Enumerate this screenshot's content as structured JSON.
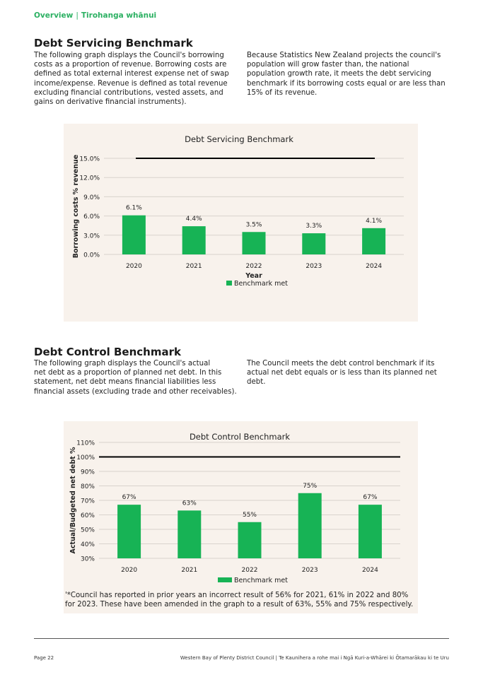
{
  "breadcrumb": {
    "section": "Overview",
    "sub": "Tirohanga whānui",
    "separator": "|"
  },
  "section1": {
    "title": "Debt Servicing Benchmark",
    "left_lines": [
      "The following graph displays the Council's borrowing",
      "costs as a proportion of revenue. Borrowing costs are",
      "defined as total external interest expense net of swap",
      "income/expense. Revenue is defined as total revenue",
      "excluding financial contributions, vested assets, and",
      "gains on derivative financial instruments)."
    ],
    "right_lines": [
      "Because Statistics New Zealand projects the council's",
      "population will grow faster than, the national",
      "population growth rate, it meets the debt servicing",
      "benchmark if its borrowing costs equal or are less than",
      "15% of its revenue."
    ]
  },
  "section2": {
    "title": "Debt Control Benchmark",
    "left_lines": [
      "The following graph displays the Council's actual",
      "net debt as a proportion of planned net debt. In this",
      "statement, net debt means financial liabilities less",
      "financial assets (excluding trade and other receivables)."
    ],
    "right_lines": [
      "The Council meets the debt control benchmark if its",
      "actual net debt equals or is less than its planned net",
      "debt."
    ]
  },
  "chart_data": [
    {
      "type": "bar",
      "title": "Debt Servicing Benchmark",
      "xlabel": "Year",
      "ylabel": "Borrowing costs % revenue",
      "categories": [
        "2020",
        "2021",
        "2022",
        "2023",
        "2024"
      ],
      "series": [
        {
          "name": "Benchmark met",
          "values": [
            6.1,
            4.4,
            3.5,
            3.3,
            4.1
          ]
        }
      ],
      "data_labels": [
        "6.1%",
        "4.4%",
        "3.5%",
        "3.3%",
        "4.1%"
      ],
      "benchmark": 15.0,
      "ylim": [
        0,
        15
      ],
      "yticks": [
        0,
        3,
        6,
        9,
        12,
        15
      ],
      "ytick_labels": [
        "0.0%",
        "3.0%",
        "6.0%",
        "9.0%",
        "12.0%",
        "15.0%"
      ],
      "grid": true,
      "legend_position": "bottom",
      "bar_color": "#17b355",
      "benchmark_color": "#000000"
    },
    {
      "type": "bar",
      "title": "Debt Control Benchmark",
      "xlabel": "",
      "ylabel": "Actual/Budgeted net debt %",
      "categories": [
        "2020",
        "2021",
        "2022",
        "2023",
        "2024"
      ],
      "series": [
        {
          "name": "Benchmark met",
          "values": [
            67,
            63,
            55,
            75,
            67
          ]
        }
      ],
      "data_labels": [
        "67%",
        "63%",
        "55%",
        "75%",
        "67%"
      ],
      "benchmark": 100,
      "ylim": [
        30,
        110
      ],
      "yticks": [
        30,
        40,
        50,
        60,
        70,
        80,
        90,
        100,
        110
      ],
      "ytick_labels": [
        "30%",
        "40%",
        "50%",
        "60%",
        "70%",
        "80%",
        "90%",
        "100%",
        "110%"
      ],
      "grid": true,
      "legend_position": "bottom",
      "bar_color": "#17b355",
      "benchmark_color": "#000000",
      "footnote": "'*Council has reported in prior years an incorrect result of 56% for 2021, 61% in 2022 and 80% for 2023. These have been amended in the graph to a result of 63%, 55% and 75% respectively."
    }
  ],
  "footer": {
    "page": "Page 22",
    "org": "Western Bay of Plenty District Council | Te Kaunihera a rohe mai i Ngā Kuri-a-Whārei ki Ōtamarākau ki te Uru"
  }
}
